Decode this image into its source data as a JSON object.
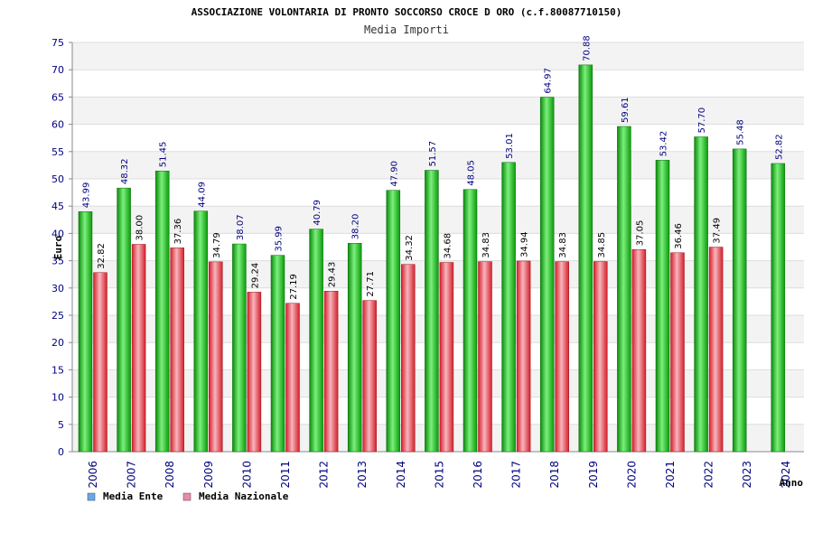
{
  "chart_data": {
    "type": "bar",
    "title": "ASSOCIAZIONE VOLONTARIA DI PRONTO SOCCORSO CROCE D ORO (c.f.80087710150)",
    "subtitle": "Media Importi",
    "xlabel": "Anno",
    "ylabel": "Euro",
    "ylim": [
      0,
      75
    ],
    "yticks": [
      0,
      5,
      10,
      15,
      20,
      25,
      30,
      35,
      40,
      45,
      50,
      55,
      60,
      65,
      70,
      75
    ],
    "grid": true,
    "legend_position": "bottom-left",
    "categories": [
      "2006",
      "2007",
      "2008",
      "2009",
      "2010",
      "2011",
      "2012",
      "2013",
      "2014",
      "2015",
      "2016",
      "2017",
      "2018",
      "2019",
      "2020",
      "2021",
      "2022",
      "2023",
      "2024"
    ],
    "series": [
      {
        "name": "Media Ente",
        "color": "#22bb22",
        "legend_color": "#66aaee",
        "label_color": "#000080",
        "values": [
          43.99,
          48.32,
          51.45,
          44.09,
          38.07,
          35.99,
          40.79,
          38.2,
          47.9,
          51.57,
          48.05,
          53.01,
          64.97,
          70.88,
          59.61,
          53.42,
          57.7,
          55.48,
          52.82
        ],
        "labels": [
          "43.99",
          "48.32",
          "51.45",
          "44.09",
          "38.07",
          "35.99",
          "40.79",
          "38.20",
          "47.90",
          "51.57",
          "48.05",
          "53.01",
          "64.97",
          "70.88",
          "59.61",
          "53.42",
          "57.70",
          "55.48",
          "52.82"
        ]
      },
      {
        "name": "Media Nazionale",
        "color": "#ee3344",
        "legend_color": "#ee88aa",
        "label_color": "#000000",
        "values": [
          32.82,
          38.0,
          37.36,
          34.79,
          29.24,
          27.19,
          29.43,
          27.71,
          34.32,
          34.68,
          34.83,
          34.94,
          34.83,
          34.85,
          37.05,
          36.46,
          37.49,
          null,
          null
        ],
        "labels": [
          "32.82",
          "38.00",
          "37.36",
          "34.79",
          "29.24",
          "27.19",
          "29.43",
          "27.71",
          "34.32",
          "34.68",
          "34.83",
          "34.94",
          "34.83",
          "34.85",
          "37.05",
          "36.46",
          "37.49",
          null,
          null
        ]
      }
    ]
  }
}
